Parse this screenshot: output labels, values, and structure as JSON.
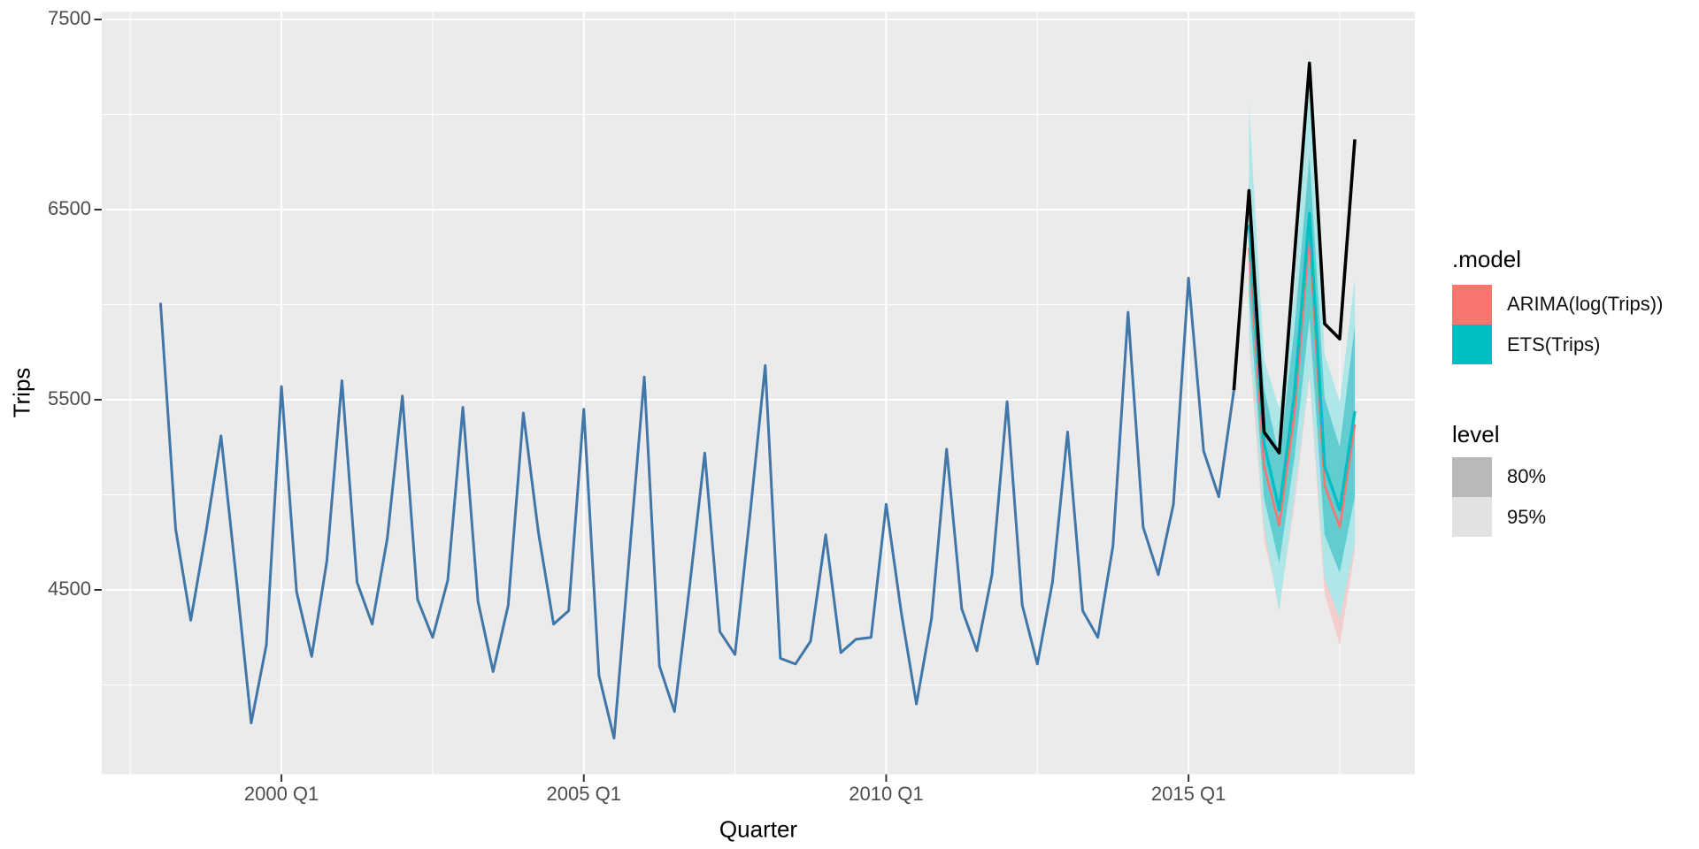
{
  "figure": {
    "x_axis_title": "Quarter",
    "y_axis_title": "Trips",
    "legend": {
      "model_title": ".model",
      "models": [
        {
          "label": "ARIMA(log(Trips))",
          "color": "#F8766D"
        },
        {
          "label": "ETS(Trips)",
          "color": "#00BFC4"
        }
      ],
      "level_title": "level",
      "levels": [
        {
          "label": "80%",
          "color": "#B9B9B9"
        },
        {
          "label": "95%",
          "color": "#E2E2E2"
        }
      ]
    }
  },
  "chart_data": {
    "type": "line",
    "title": "",
    "xlabel": "Quarter",
    "ylabel": "Trips",
    "x_tick_labels": [
      {
        "label": "2000 Q1",
        "quarter_index": 8
      },
      {
        "label": "2005 Q1",
        "quarter_index": 28
      },
      {
        "label": "2010 Q1",
        "quarter_index": 48
      },
      {
        "label": "2015 Q1",
        "quarter_index": 68
      }
    ],
    "x_minor_quarter_indices": [
      -2,
      18,
      38,
      58,
      78
    ],
    "y_tick_values": [
      4500,
      5500,
      6500,
      7500
    ],
    "y_minor_values": [
      4000,
      5000,
      6000,
      7000
    ],
    "ylim_panel": [
      3530,
      7540
    ],
    "x_start_label": "1998 Q1",
    "historical": {
      "name": "training data (Trips)",
      "start": "1998 Q1",
      "start_quarter_index": 0,
      "frequency": "quarterly",
      "values": [
        6010,
        4820,
        4340,
        4800,
        5310,
        4570,
        3800,
        4210,
        5570,
        4490,
        4150,
        4650,
        5600,
        4540,
        4320,
        4770,
        5520,
        4450,
        4250,
        4550,
        5460,
        4440,
        4070,
        4420,
        5430,
        4800,
        4320,
        4390,
        5450,
        4050,
        3720,
        4670,
        5620,
        4100,
        3860,
        4520,
        5220,
        4280,
        4160,
        4900,
        5680,
        4140,
        4110,
        4230,
        4790,
        4170,
        4240,
        4250,
        4950,
        4380,
        3900,
        4350,
        5240,
        4400,
        4180,
        4580,
        5490,
        4420,
        4110,
        4540,
        5330,
        4390,
        4250,
        4730,
        5960,
        4830,
        4580,
        4950,
        6140,
        5230,
        4990,
        5550
      ]
    },
    "actual_future": {
      "name": "observed data over forecast horizon",
      "start": "2015 Q4",
      "start_quarter_index": 71,
      "values": [
        5550,
        6600,
        5330,
        5220,
        6250,
        7270,
        5900,
        5820,
        6870
      ]
    },
    "forecasts": {
      "start": "2016 Q1",
      "start_quarter_index": 72,
      "horizon_quarters": 8,
      "series": [
        {
          "name": "ARIMA(log(Trips))",
          "mean": [
            6300,
            5150,
            4840,
            5420,
            6360,
            5050,
            4830,
            5370
          ],
          "level80_lower": [
            5980,
            4900,
            4560,
            5110,
            5890,
            4700,
            4450,
            4900
          ],
          "level80_upper": [
            6560,
            5400,
            5120,
            5730,
            6700,
            5400,
            5210,
            5840
          ],
          "level95_lower": [
            5800,
            4760,
            4420,
            4940,
            5620,
            4480,
            4210,
            4700
          ],
          "level95_upper": [
            6900,
            5540,
            5270,
            5890,
            7130,
            5590,
            5390,
            6040
          ]
        },
        {
          "name": "ETS(Trips)",
          "mean": [
            6420,
            5270,
            4920,
            5530,
            6480,
            5150,
            4920,
            5440
          ],
          "level80_lower": [
            6050,
            4980,
            4640,
            5190,
            5930,
            4790,
            4590,
            4990
          ],
          "level80_upper": [
            6650,
            5560,
            5200,
            5870,
            6780,
            5510,
            5250,
            5890
          ],
          "level95_lower": [
            5850,
            4830,
            4385,
            5000,
            5640,
            4560,
            4350,
            4740
          ],
          "level95_upper": [
            7050,
            5710,
            5455,
            6060,
            7320,
            5740,
            5490,
            6140
          ]
        }
      ]
    },
    "colors": {
      "panel_background": "#EBEBEB",
      "gridline": "#FFFFFF",
      "tick_mark": "#333333",
      "tick_label": "#4D4D4D",
      "historical_line": "#4076A8",
      "actual_line": "#000000",
      "arima_line": "#F8766D",
      "ets_line": "#00BFC4",
      "arima_80_fill": "#F7B1AA",
      "arima_95_fill": "#F2CFCC",
      "ets_80_fill": "#62CDD1",
      "ets_95_fill": "#AFE6E8"
    },
    "legend_position": "right",
    "grid": true
  }
}
